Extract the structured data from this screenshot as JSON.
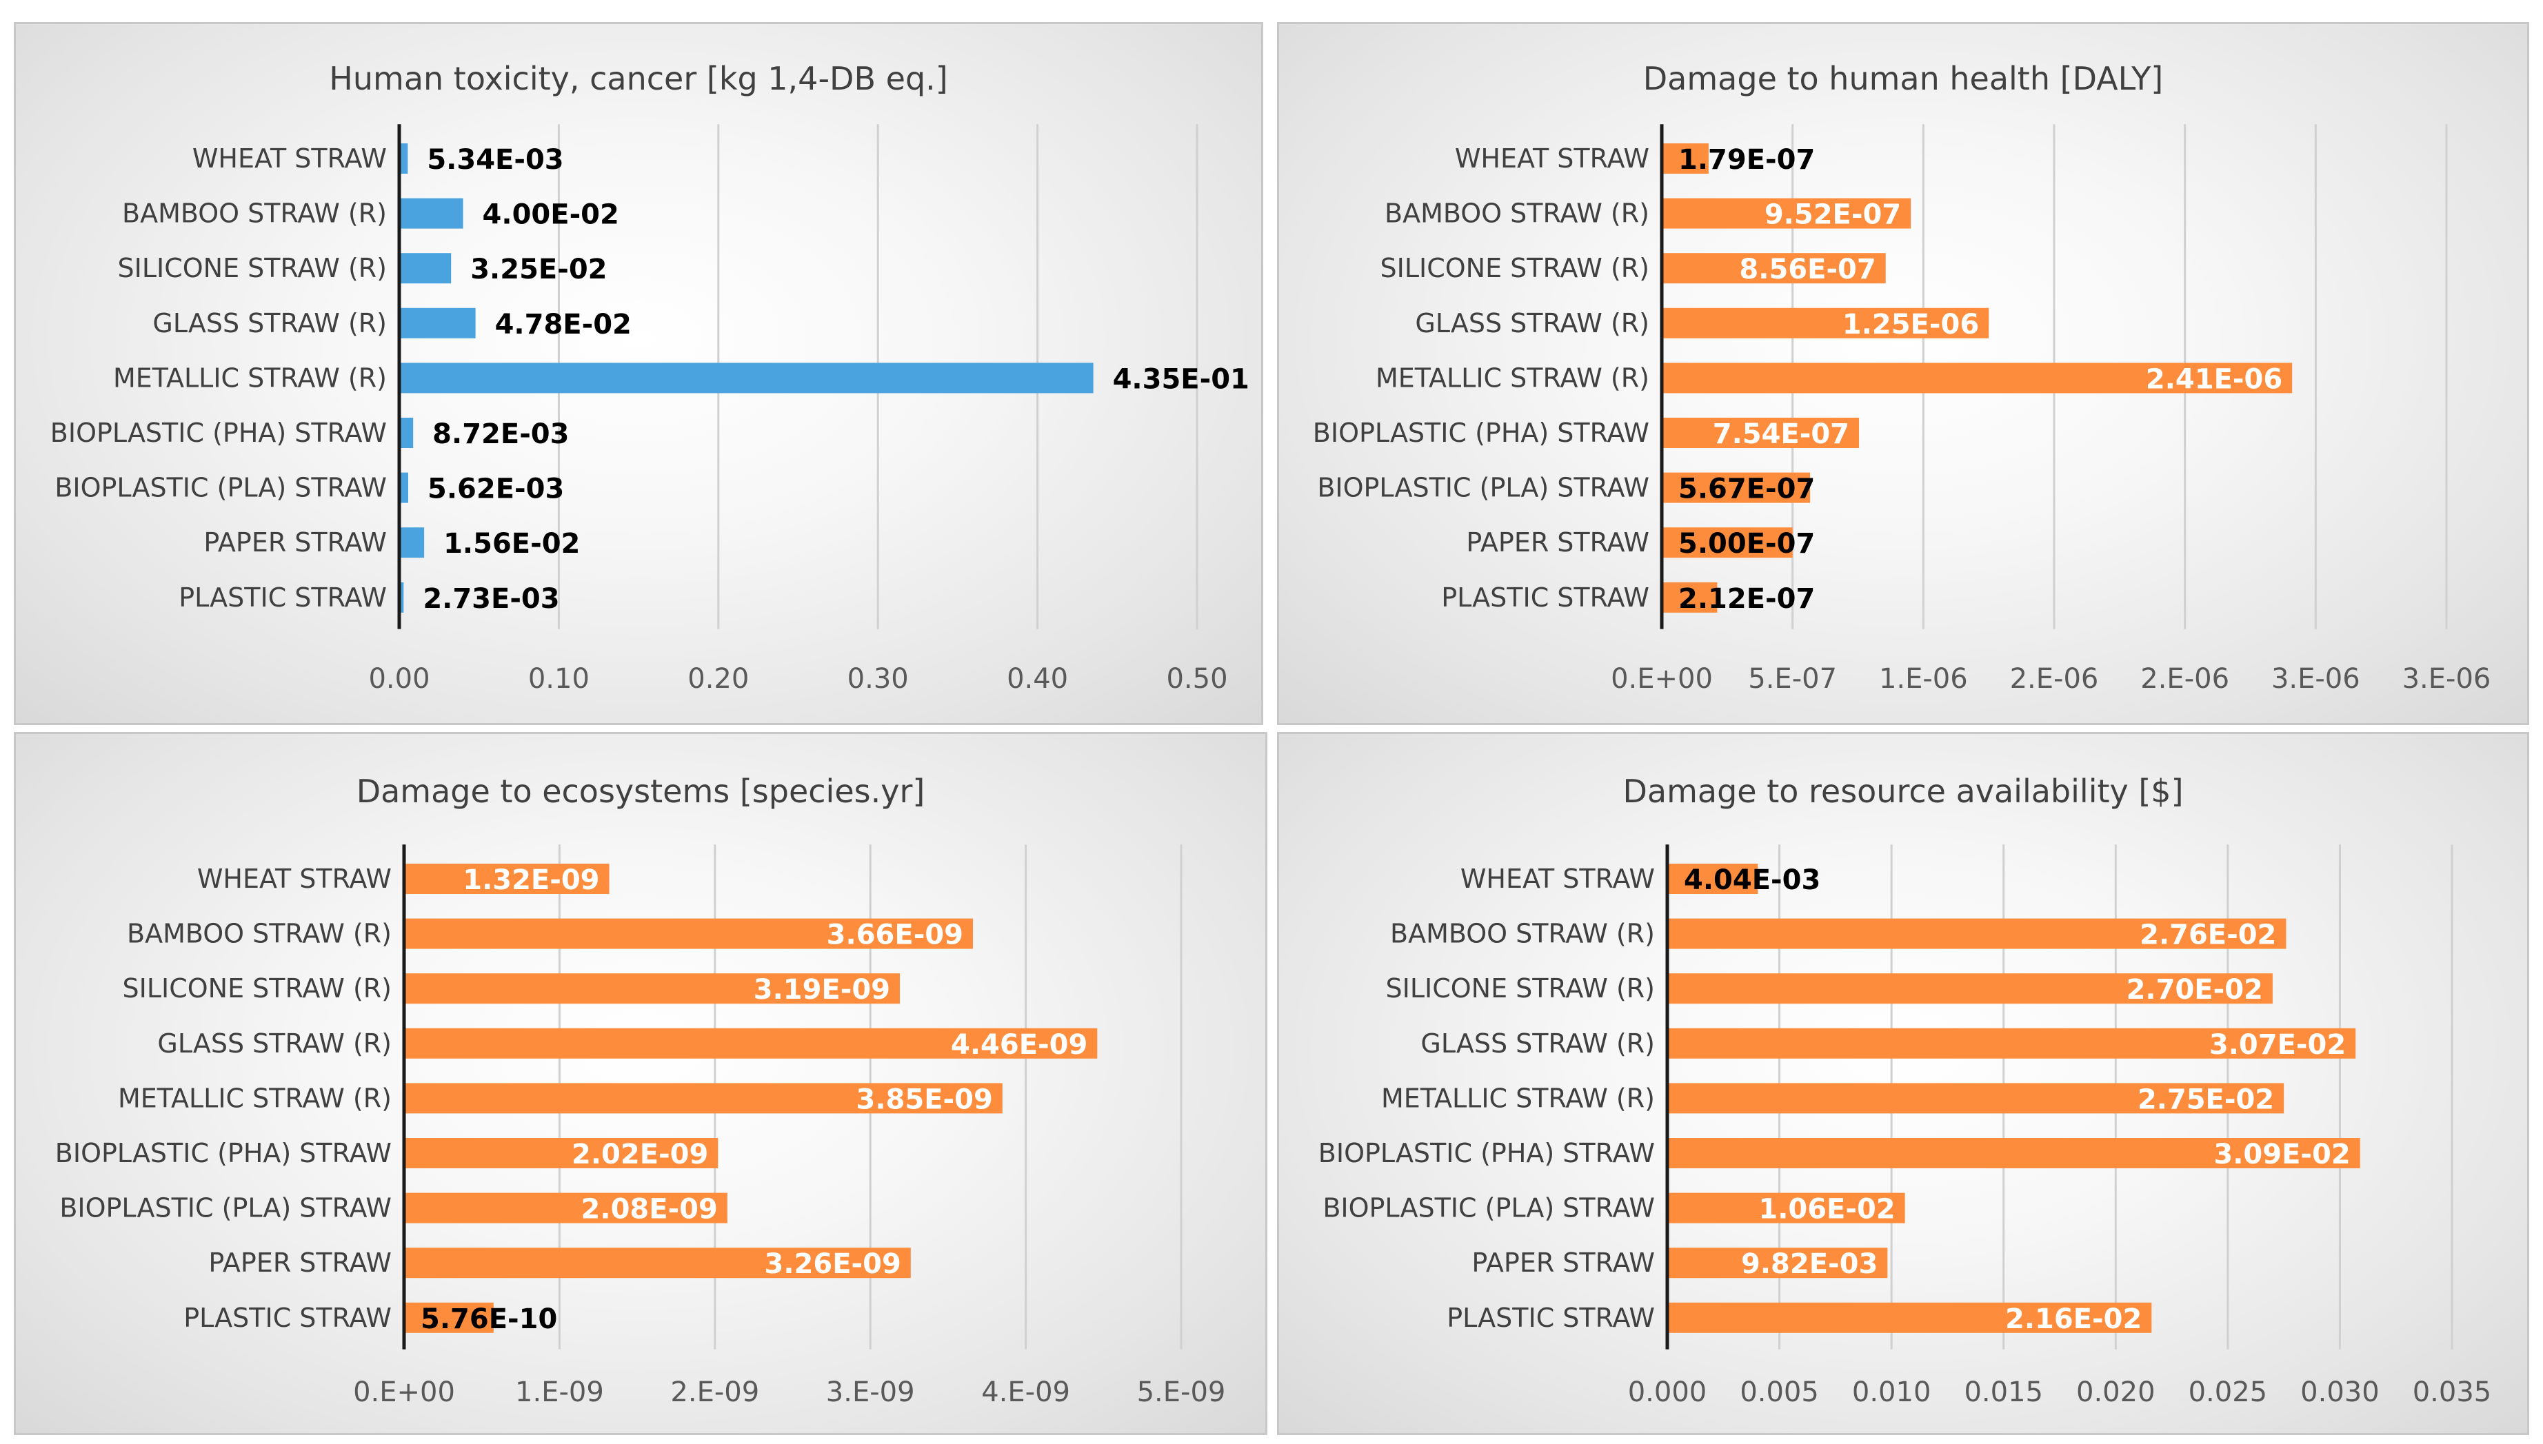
{
  "chart_data": [
    {
      "type": "bar",
      "orientation": "horizontal",
      "title": "Human toxicity, cancer [kg 1,4-DB eq.]",
      "categories": [
        "WHEAT STRAW",
        "BAMBOO STRAW (R)",
        "SILICONE STRAW (R)",
        "GLASS STRAW (R)",
        "METALLIC STRAW (R)",
        "BIOPLASTIC (PHA) STRAW",
        "BIOPLASTIC (PLA) STRAW",
        "PAPER STRAW",
        "PLASTIC STRAW"
      ],
      "values": [
        0.00534,
        0.04,
        0.0325,
        0.0478,
        0.435,
        0.00872,
        0.00562,
        0.0156,
        0.00273
      ],
      "labels": [
        "5.34E-03",
        "4.00E-02",
        "3.25E-02",
        "4.78E-02",
        "4.35E-01",
        "8.72E-03",
        "5.62E-03",
        "1.56E-02",
        "2.73E-03"
      ],
      "label_position": "outside",
      "xlim": [
        0,
        0.5
      ],
      "ticks": [
        0,
        0.1,
        0.2,
        0.3,
        0.4,
        0.5
      ],
      "tick_labels": [
        "0.00",
        "0.10",
        "0.20",
        "0.30",
        "0.40",
        "0.50"
      ],
      "color": "#4aa3df",
      "grid": true
    },
    {
      "type": "bar",
      "orientation": "horizontal",
      "title": "Damage to human health [DALY]",
      "categories": [
        "WHEAT STRAW",
        "BAMBOO STRAW (R)",
        "SILICONE STRAW (R)",
        "GLASS STRAW (R)",
        "METALLIC STRAW (R)",
        "BIOPLASTIC (PHA) STRAW",
        "BIOPLASTIC (PLA) STRAW",
        "PAPER STRAW",
        "PLASTIC STRAW"
      ],
      "values": [
        1.79e-07,
        9.52e-07,
        8.56e-07,
        1.25e-06,
        2.41e-06,
        7.54e-07,
        5.67e-07,
        5e-07,
        2.12e-07
      ],
      "labels": [
        "1.79E-07",
        "9.52E-07",
        "8.56E-07",
        "1.25E-06",
        "2.41E-06",
        "7.54E-07",
        "5.67E-07",
        "5.00E-07",
        "2.12E-07"
      ],
      "label_position": "inside_end",
      "xlim": [
        0,
        3e-06
      ],
      "ticks": [
        0,
        5e-07,
        1e-06,
        1.5e-06,
        2e-06,
        2.5e-06,
        3e-06
      ],
      "tick_labels": [
        "0.E+00",
        "5.E-07",
        "1.E-06",
        "2.E-06",
        "2.E-06",
        "3.E-06",
        "3.E-06"
      ],
      "color": "#fd8d3c",
      "grid": true
    },
    {
      "type": "bar",
      "orientation": "horizontal",
      "title": "Damage to ecosystems [species.yr]",
      "categories": [
        "WHEAT STRAW",
        "BAMBOO STRAW (R)",
        "SILICONE STRAW (R)",
        "GLASS STRAW (R)",
        "METALLIC STRAW (R)",
        "BIOPLASTIC (PHA) STRAW",
        "BIOPLASTIC (PLA) STRAW",
        "PAPER STRAW",
        "PLASTIC STRAW"
      ],
      "values": [
        1.32e-09,
        3.66e-09,
        3.19e-09,
        4.46e-09,
        3.85e-09,
        2.02e-09,
        2.08e-09,
        3.26e-09,
        5.76e-10
      ],
      "labels": [
        "1.32E-09",
        "3.66E-09",
        "3.19E-09",
        "4.46E-09",
        "3.85E-09",
        "2.02E-09",
        "2.08E-09",
        "3.26E-09",
        "5.76E-10"
      ],
      "label_position": "inside_end",
      "xlim": [
        0,
        5e-09
      ],
      "ticks": [
        0,
        1e-09,
        2e-09,
        3e-09,
        4e-09,
        5e-09
      ],
      "tick_labels": [
        "0.E+00",
        "1.E-09",
        "2.E-09",
        "3.E-09",
        "4.E-09",
        "5.E-09"
      ],
      "color": "#fd8d3c",
      "grid": true
    },
    {
      "type": "bar",
      "orientation": "horizontal",
      "title": "Damage to resource availability [$]",
      "categories": [
        "WHEAT STRAW",
        "BAMBOO STRAW (R)",
        "SILICONE STRAW (R)",
        "GLASS STRAW (R)",
        "METALLIC STRAW (R)",
        "BIOPLASTIC (PHA) STRAW",
        "BIOPLASTIC (PLA) STRAW",
        "PAPER STRAW",
        "PLASTIC STRAW"
      ],
      "values": [
        0.00404,
        0.0276,
        0.027,
        0.0307,
        0.0275,
        0.0309,
        0.0106,
        0.00982,
        0.0216
      ],
      "labels": [
        "4.04E-03",
        "2.76E-02",
        "2.70E-02",
        "3.07E-02",
        "2.75E-02",
        "3.09E-02",
        "1.06E-02",
        "9.82E-03",
        "2.16E-02"
      ],
      "label_position": "inside_end",
      "xlim": [
        0,
        0.035
      ],
      "ticks": [
        0,
        0.005,
        0.01,
        0.015,
        0.02,
        0.025,
        0.03,
        0.035
      ],
      "tick_labels": [
        "0.000",
        "0.005",
        "0.010",
        "0.015",
        "0.020",
        "0.025",
        "0.030",
        "0.035"
      ],
      "color": "#fd8d3c",
      "grid": true
    }
  ]
}
